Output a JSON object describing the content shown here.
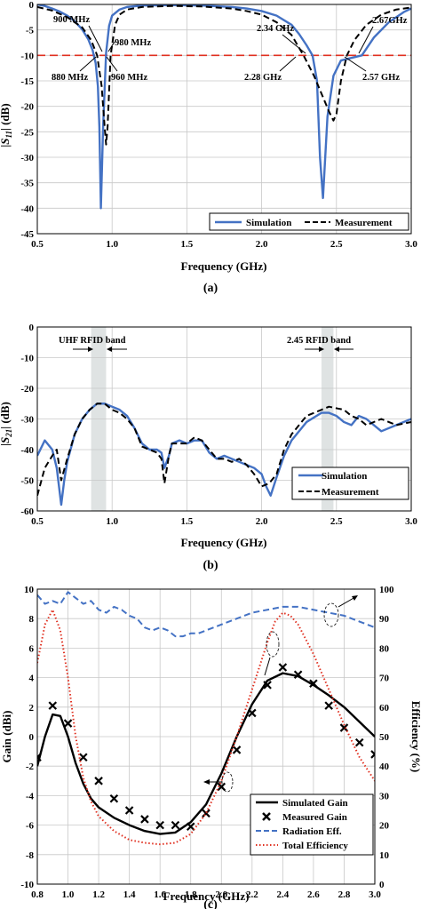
{
  "chart_data": [
    {
      "type": "line",
      "panel_label": "(a)",
      "xlabel": "Frequency (GHz)",
      "ylabel": "|S11| (dB)",
      "xlim": [
        0.5,
        3.0
      ],
      "ylim": [
        -45,
        0
      ],
      "xticks": [
        "0.5",
        "1.0",
        "1.5",
        "2.0",
        "2.5",
        "3.0"
      ],
      "yticks": [
        "0",
        "-5",
        "-10",
        "-15",
        "-20",
        "-25",
        "-30",
        "-35",
        "-40",
        "-45"
      ],
      "grid": true,
      "legend_position": "bottom-right",
      "reference_line_y": -10,
      "series": [
        {
          "name": "Simulation",
          "color": "#4472c4",
          "style": "solid",
          "x": [
            0.5,
            0.55,
            0.6,
            0.65,
            0.7,
            0.75,
            0.8,
            0.84,
            0.87,
            0.89,
            0.905,
            0.915,
            0.925,
            0.94,
            0.96,
            0.98,
            1.0,
            1.05,
            1.1,
            1.2,
            1.4,
            1.6,
            1.8,
            1.9,
            2.0,
            2.1,
            2.2,
            2.25,
            2.3,
            2.34,
            2.37,
            2.39,
            2.41,
            2.44,
            2.48,
            2.53,
            2.6,
            2.67,
            2.75,
            2.85,
            2.95,
            3.0
          ],
          "y": [
            0,
            -0.3,
            -0.8,
            -1.4,
            -2.2,
            -3.3,
            -4.9,
            -6.8,
            -9.0,
            -11.5,
            -16.0,
            -24.0,
            -40.0,
            -24.0,
            -9.5,
            -4.2,
            -2.2,
            -1.0,
            -0.5,
            -0.2,
            -0.15,
            -0.2,
            -0.5,
            -0.8,
            -1.3,
            -2.2,
            -4.0,
            -5.8,
            -8.0,
            -10.0,
            -15.0,
            -30.0,
            -38.0,
            -22.0,
            -14.0,
            -11.0,
            -10.5,
            -10.0,
            -6.5,
            -3.5,
            -1.5,
            -0.8
          ]
        },
        {
          "name": "Measurement",
          "color": "#000000",
          "style": "dashed",
          "x": [
            0.5,
            0.6,
            0.7,
            0.8,
            0.86,
            0.9,
            0.93,
            0.95,
            0.96,
            0.97,
            0.99,
            1.02,
            1.05,
            1.1,
            1.2,
            1.4,
            1.6,
            1.8,
            1.9,
            2.0,
            2.1,
            2.2,
            2.28,
            2.35,
            2.4,
            2.45,
            2.48,
            2.5,
            2.53,
            2.57,
            2.62,
            2.7,
            2.8,
            2.9,
            3.0
          ],
          "y": [
            -0.5,
            -1.2,
            -2.5,
            -4.5,
            -7.0,
            -10.0,
            -16.0,
            -24.0,
            -27.5,
            -24.0,
            -10.0,
            -4.0,
            -2.0,
            -1.0,
            -0.5,
            -0.3,
            -0.4,
            -0.8,
            -1.3,
            -2.0,
            -3.5,
            -6.0,
            -10.0,
            -14.0,
            -17.5,
            -21.0,
            -22.8,
            -21.5,
            -15.0,
            -10.0,
            -7.0,
            -4.0,
            -2.0,
            -1.0,
            -0.6
          ]
        }
      ],
      "annotations": [
        {
          "text": "900 MHz",
          "x": 0.9,
          "y": -10
        },
        {
          "text": "980  MHz",
          "x": 0.98,
          "y": -10
        },
        {
          "text": "880 MHz",
          "x": 0.88,
          "y": -10
        },
        {
          "text": "960 MHz",
          "x": 0.96,
          "y": -10
        },
        {
          "text": "2.34 GHz",
          "x": 2.34,
          "y": -10
        },
        {
          "text": "2.28 GHz",
          "x": 2.28,
          "y": -10
        },
        {
          "text": "2.67GHz",
          "x": 2.67,
          "y": -10
        },
        {
          "text": "2.57 GHz",
          "x": 2.57,
          "y": -10
        }
      ]
    },
    {
      "type": "line",
      "panel_label": "(b)",
      "xlabel": "Frequency (GHz)",
      "ylabel": "|S21| (dB)",
      "xlim": [
        0.5,
        3.0
      ],
      "ylim": [
        -60,
        0
      ],
      "xticks": [
        "0.5",
        "1.0",
        "1.5",
        "2.0",
        "2.5",
        "3.0"
      ],
      "yticks": [
        "0",
        "-10",
        "-20",
        "-30",
        "-40",
        "-50",
        "-60"
      ],
      "grid": true,
      "legend_position": "bottom-right",
      "bands": [
        {
          "label": "UHF RFID band",
          "x0": 0.86,
          "x1": 0.96
        },
        {
          "label": "2.45 RFID band",
          "x0": 2.4,
          "x1": 2.48
        }
      ],
      "series": [
        {
          "name": "Simulation",
          "color": "#4472c4",
          "style": "solid",
          "x": [
            0.5,
            0.55,
            0.6,
            0.63,
            0.66,
            0.68,
            0.7,
            0.75,
            0.8,
            0.85,
            0.9,
            0.95,
            1.0,
            1.05,
            1.1,
            1.15,
            1.2,
            1.25,
            1.3,
            1.33,
            1.35,
            1.38,
            1.4,
            1.45,
            1.5,
            1.55,
            1.6,
            1.65,
            1.7,
            1.75,
            1.8,
            1.85,
            1.9,
            1.95,
            2.0,
            2.03,
            2.06,
            2.1,
            2.15,
            2.2,
            2.3,
            2.4,
            2.45,
            2.5,
            2.55,
            2.6,
            2.65,
            2.7,
            2.8,
            2.9,
            3.0
          ],
          "y": [
            -42,
            -37,
            -40,
            -46,
            -58,
            -50,
            -44,
            -35,
            -30,
            -27,
            -25,
            -25,
            -26,
            -27,
            -29,
            -33,
            -38,
            -40,
            -40,
            -41,
            -46,
            -42,
            -38,
            -37,
            -38,
            -37,
            -37,
            -41,
            -43,
            -42,
            -43,
            -44,
            -45,
            -46,
            -48,
            -52,
            -55,
            -49,
            -42,
            -37,
            -31,
            -28,
            -28,
            -29,
            -31,
            -32,
            -29,
            -30,
            -34,
            -32,
            -30
          ]
        },
        {
          "name": "Measurement",
          "color": "#000000",
          "style": "dashed",
          "x": [
            0.5,
            0.55,
            0.6,
            0.63,
            0.66,
            0.7,
            0.75,
            0.8,
            0.85,
            0.9,
            0.95,
            1.0,
            1.05,
            1.1,
            1.15,
            1.2,
            1.25,
            1.3,
            1.33,
            1.35,
            1.38,
            1.4,
            1.45,
            1.5,
            1.55,
            1.6,
            1.65,
            1.7,
            1.75,
            1.8,
            1.85,
            1.9,
            1.95,
            2.0,
            2.05,
            2.1,
            2.15,
            2.2,
            2.3,
            2.4,
            2.45,
            2.5,
            2.55,
            2.6,
            2.65,
            2.7,
            2.8,
            2.9,
            3.0
          ],
          "y": [
            -55,
            -46,
            -42,
            -40,
            -50,
            -43,
            -35,
            -30,
            -27,
            -25,
            -25,
            -27,
            -28,
            -30,
            -33,
            -39,
            -40,
            -41,
            -43,
            -51,
            -42,
            -38,
            -38,
            -38,
            -36,
            -37,
            -40,
            -43,
            -43,
            -44,
            -43,
            -45,
            -48,
            -52,
            -51,
            -48,
            -40,
            -35,
            -29,
            -27,
            -26,
            -26.5,
            -27,
            -29,
            -30,
            -32,
            -30,
            -32,
            -31
          ]
        }
      ]
    },
    {
      "type": "line",
      "panel_label": "(c)",
      "xlabel": "Frequency (GHz)",
      "ylabel": "Gain (dBi)",
      "ylabel_right": "Efficiency (%)",
      "xlim": [
        0.8,
        3.0
      ],
      "ylim": [
        -10,
        10
      ],
      "ylim_right": [
        0,
        100
      ],
      "xticks": [
        "0.8",
        "1.0",
        "1.2",
        "1.4",
        "1.6",
        "1.8",
        "2.0",
        "2.2",
        "2.4",
        "2.6",
        "2.8",
        "3.0"
      ],
      "yticks": [
        "10",
        "8",
        "6",
        "4",
        "2",
        "0",
        "-2",
        "-4",
        "-6",
        "-8",
        "-10"
      ],
      "yticks_right": [
        "100",
        "90",
        "80",
        "70",
        "60",
        "50",
        "40",
        "30",
        "20",
        "10",
        "0"
      ],
      "grid": true,
      "legend_position": "bottom-right",
      "series": [
        {
          "name": "Simulated Gain",
          "color": "#000000",
          "style": "solid",
          "axis": "left",
          "x": [
            0.8,
            0.85,
            0.9,
            0.95,
            1.0,
            1.05,
            1.1,
            1.15,
            1.2,
            1.3,
            1.4,
            1.5,
            1.6,
            1.7,
            1.8,
            1.9,
            2.0,
            2.1,
            2.2,
            2.3,
            2.4,
            2.5,
            2.6,
            2.7,
            2.8,
            2.9,
            3.0
          ],
          "y": [
            -2.0,
            0.0,
            1.5,
            1.4,
            0.0,
            -1.8,
            -3.2,
            -4.2,
            -4.8,
            -5.5,
            -6.0,
            -6.4,
            -6.6,
            -6.5,
            -5.8,
            -4.6,
            -2.5,
            0.0,
            2.2,
            3.8,
            4.3,
            4.1,
            3.5,
            2.8,
            2.0,
            1.0,
            0.0
          ]
        },
        {
          "name": "Measured Gain",
          "color": "#000000",
          "style": "x-markers",
          "axis": "left",
          "x": [
            0.8,
            0.9,
            1.0,
            1.1,
            1.2,
            1.3,
            1.4,
            1.5,
            1.6,
            1.7,
            1.8,
            1.9,
            2.0,
            2.1,
            2.2,
            2.3,
            2.4,
            2.5,
            2.6,
            2.7,
            2.8,
            2.9,
            3.0
          ],
          "y": [
            -1.4,
            2.1,
            0.9,
            -1.4,
            -3.0,
            -4.2,
            -5.0,
            -5.6,
            -6.0,
            -6.0,
            -6.1,
            -5.2,
            -3.4,
            -0.9,
            1.6,
            3.5,
            4.7,
            4.2,
            3.6,
            2.1,
            0.6,
            -0.4,
            -1.2
          ]
        },
        {
          "name": "Radiation Eff.",
          "color": "#4472c4",
          "style": "dashed",
          "axis": "right",
          "x": [
            0.8,
            0.85,
            0.9,
            0.95,
            1.0,
            1.05,
            1.1,
            1.15,
            1.2,
            1.25,
            1.3,
            1.35,
            1.4,
            1.45,
            1.5,
            1.55,
            1.6,
            1.65,
            1.7,
            1.75,
            1.8,
            1.85,
            1.9,
            2.0,
            2.1,
            2.2,
            2.3,
            2.4,
            2.5,
            2.6,
            2.7,
            2.8,
            2.9,
            3.0
          ],
          "y": [
            98,
            95,
            96,
            95,
            99,
            97,
            95,
            96,
            93,
            92,
            94,
            93,
            91,
            90,
            87,
            86,
            87,
            86,
            84,
            84,
            85,
            85,
            86,
            88,
            90,
            92,
            93,
            94,
            94,
            93,
            92,
            91,
            89,
            87
          ]
        },
        {
          "name": "Total Efficiency",
          "color": "#e03020",
          "style": "dotted",
          "axis": "right",
          "x": [
            0.8,
            0.85,
            0.9,
            0.95,
            1.0,
            1.05,
            1.1,
            1.15,
            1.2,
            1.3,
            1.4,
            1.5,
            1.6,
            1.7,
            1.8,
            1.9,
            2.0,
            2.1,
            2.2,
            2.3,
            2.35,
            2.4,
            2.45,
            2.5,
            2.6,
            2.7,
            2.8,
            2.9,
            3.0
          ],
          "y": [
            75,
            88,
            93,
            86,
            70,
            50,
            36,
            28,
            23,
            18,
            15,
            14,
            13.5,
            14,
            17,
            24,
            35,
            50,
            66,
            82,
            89,
            92,
            91,
            88,
            78,
            66,
            54,
            43,
            35
          ]
        }
      ]
    }
  ]
}
